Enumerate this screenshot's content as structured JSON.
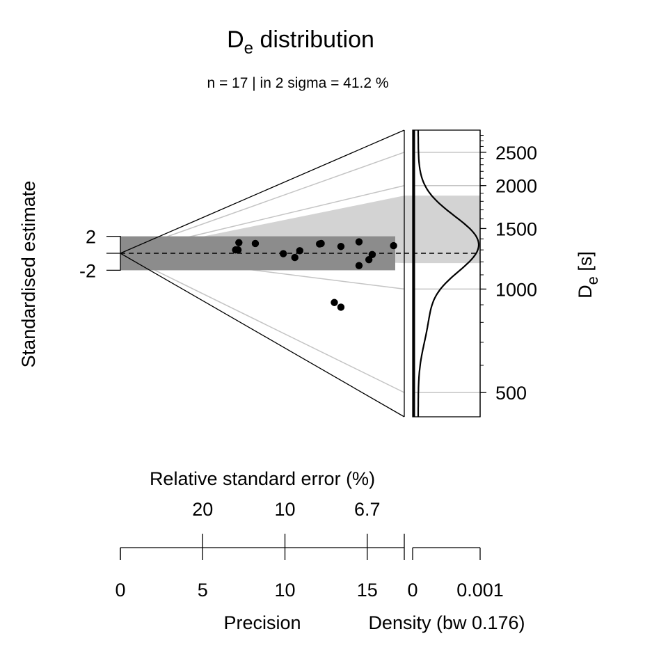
{
  "chart_data": {
    "type": "radial",
    "title": {
      "main": "D",
      "sub": "e",
      "rest": " distribution"
    },
    "subtitle": "n = 17 | in 2 sigma = 41.2 %",
    "ylabel": "Standardised estimate",
    "y_ticks": [
      "2",
      "-2"
    ],
    "z_axis": {
      "label_main": "D",
      "label_sub": "e",
      "label_rest": " [s]",
      "ticks": [
        {
          "label": "2500",
          "value": 2500
        },
        {
          "label": "2000",
          "value": 2000
        },
        {
          "label": "1500",
          "value": 1500
        },
        {
          "label": "1000",
          "value": 1000
        },
        {
          "label": "500",
          "value": 500
        }
      ],
      "range": [
        425,
        2900
      ],
      "central_value": 1290,
      "band_range": [
        1190,
        1870
      ]
    },
    "rse_axis": {
      "label": "Relative standard error (%)",
      "ticks": [
        {
          "label": "20",
          "precision": 5
        },
        {
          "label": "10",
          "precision": 10
        },
        {
          "label": "6.7",
          "precision": 15
        }
      ]
    },
    "precision_axis": {
      "label": "Precision",
      "ticks": [
        {
          "label": "0",
          "value": 0
        },
        {
          "label": "5",
          "value": 5
        },
        {
          "label": "10",
          "value": 10
        },
        {
          "label": "15",
          "value": 15
        }
      ],
      "max": 17.25
    },
    "density_axis": {
      "label": "Density (bw 0.176)",
      "ticks": [
        {
          "label": "0",
          "value": 0
        },
        {
          "label": "0.001",
          "value": 0.001
        }
      ]
    },
    "points": [
      {
        "precision": 7.2,
        "z": 1.25
      },
      {
        "precision": 8.2,
        "z": 1.15
      },
      {
        "precision": 7.0,
        "z": 0.4
      },
      {
        "precision": 7.15,
        "z": 0.4
      },
      {
        "precision": 12.1,
        "z": 1.1
      },
      {
        "precision": 12.2,
        "z": 1.15
      },
      {
        "precision": 13.4,
        "z": 0.8
      },
      {
        "precision": 14.5,
        "z": 1.35
      },
      {
        "precision": 16.6,
        "z": 0.9
      },
      {
        "precision": 10.9,
        "z": 0.3
      },
      {
        "precision": 9.9,
        "z": -0.05
      },
      {
        "precision": 10.6,
        "z": -0.5
      },
      {
        "precision": 15.3,
        "z": -0.15
      },
      {
        "precision": 15.1,
        "z": -0.75
      },
      {
        "precision": 14.5,
        "z": -1.45
      },
      {
        "precision": 13.0,
        "z": -5.8
      },
      {
        "precision": 13.4,
        "z": -6.35
      }
    ]
  }
}
